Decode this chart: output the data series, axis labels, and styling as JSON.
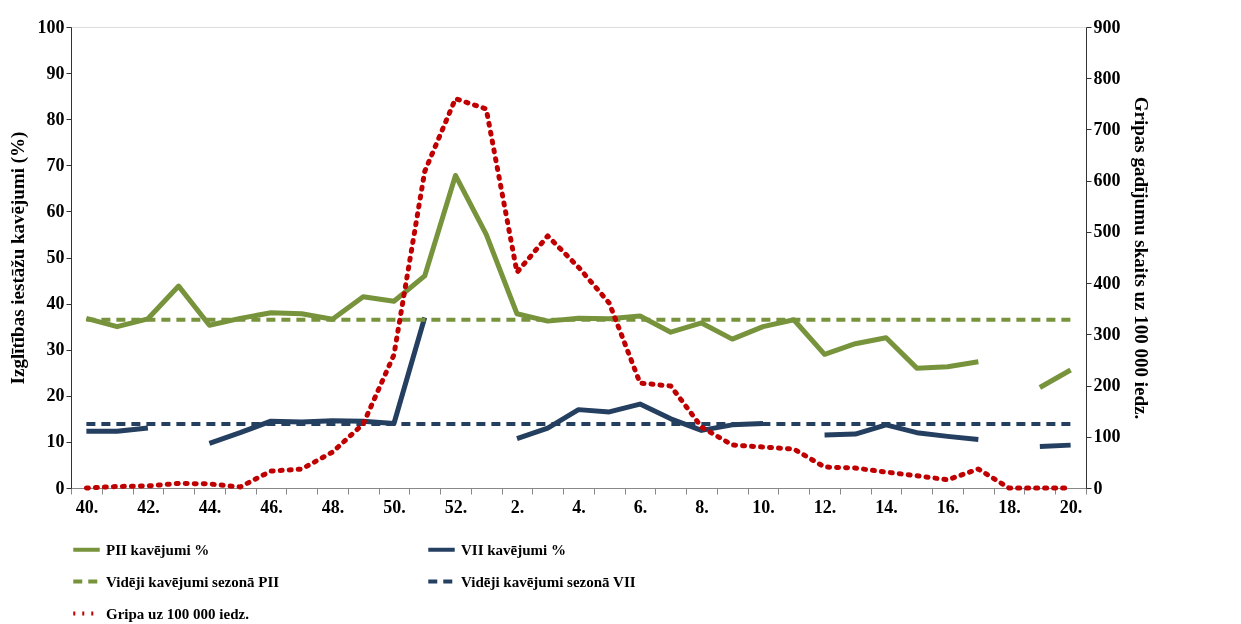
{
  "chart_data": {
    "type": "line",
    "categories": [
      "40.",
      null,
      "42.",
      null,
      "44.",
      null,
      "46.",
      null,
      "48.",
      null,
      "50.",
      null,
      "52.",
      null,
      "2.",
      null,
      "4.",
      null,
      "6.",
      null,
      "8.",
      null,
      "10.",
      null,
      "12.",
      null,
      "14.",
      null,
      "16.",
      null,
      "18.",
      null,
      "20."
    ],
    "ylabel": "Izglītības iestāžu kavējumi (%)",
    "y2label": "Gripas gadījumu skaits uz 100 000 iedz.",
    "ylim": [
      0,
      100
    ],
    "yticks": [
      0,
      10,
      20,
      30,
      40,
      50,
      60,
      70,
      80,
      90,
      100
    ],
    "y2lim": [
      0,
      900
    ],
    "y2ticks": [
      0,
      100,
      200,
      300,
      400,
      500,
      600,
      700,
      800,
      900
    ],
    "grid": false,
    "legend": "bottom",
    "marker": "none",
    "series": [
      {
        "name": "PII kavējumi %",
        "color": "#77933c",
        "line_style": "solid",
        "values": [
          36.8,
          35,
          36.7,
          43.8,
          35.3,
          36.8,
          38,
          37.8,
          36.6,
          41.5,
          40.5,
          46,
          67.8,
          55,
          37.8,
          36.2,
          36.8,
          36.7,
          37.3,
          33.8,
          35.8,
          32.3,
          35,
          36.5,
          29,
          31.3,
          32.6,
          26,
          26.3,
          27.4,
          null,
          21.8,
          25.6
        ]
      },
      {
        "name": "VII kavējumi %",
        "color": "#243f60",
        "line_style": "solid",
        "values": [
          12.3,
          12.3,
          13,
          null,
          9.7,
          12,
          14.5,
          14.3,
          14.6,
          14.5,
          14,
          37,
          null,
          null,
          10.7,
          13,
          17,
          16.5,
          18.2,
          15,
          12.5,
          13.7,
          14,
          null,
          11.5,
          11.7,
          13.7,
          12,
          11.2,
          10.5,
          null,
          9,
          9.3
        ]
      },
      {
        "name": "Vidēji kavējumi sezonā PII",
        "color": "#77933c",
        "line_style": "dashed",
        "values": [
          36.5,
          36.5,
          36.5,
          36.5,
          36.5,
          36.5,
          36.5,
          36.5,
          36.5,
          36.5,
          36.5,
          36.5,
          36.5,
          36.5,
          36.5,
          36.5,
          36.5,
          36.5,
          36.5,
          36.5,
          36.5,
          36.5,
          36.5,
          36.5,
          36.5,
          36.5,
          36.5,
          36.5,
          36.5,
          36.5,
          36.5,
          36.5,
          36.5
        ]
      },
      {
        "name": "Vidēji kavējumi sezonā VII",
        "color": "#243f60",
        "line_style": "dashed",
        "values": [
          13.9,
          13.9,
          13.9,
          13.9,
          13.9,
          13.9,
          13.9,
          13.9,
          13.9,
          13.9,
          13.9,
          13.9,
          13.9,
          13.9,
          13.9,
          13.9,
          13.9,
          13.9,
          13.9,
          13.9,
          13.9,
          13.9,
          13.9,
          13.9,
          13.9,
          13.9,
          13.9,
          13.9,
          13.9,
          13.9,
          13.9,
          13.9,
          13.9
        ]
      },
      {
        "name": "Gripa uz 100 000 iedz.",
        "color": "#c00000",
        "line_style": "dotted",
        "axis": "y2",
        "values": [
          0,
          3,
          4,
          9,
          8,
          2,
          33,
          37,
          70,
          125,
          260,
          618,
          760,
          740,
          421,
          492,
          431,
          361,
          205,
          199,
          119,
          84,
          80,
          76,
          41,
          39,
          31,
          24,
          16,
          37,
          0,
          0,
          0
        ]
      }
    ]
  }
}
